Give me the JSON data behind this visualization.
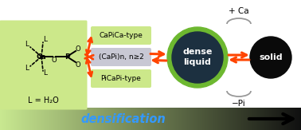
{
  "bg_color": "#ffffff",
  "light_green": "#cce88a",
  "medium_green": "#6db830",
  "dark_circle_color": "#1c3040",
  "black_circle": "#0a0a0a",
  "orange_arrow": "#ff4400",
  "gray_box_color": "#c8c8d4",
  "box1_label": "CaPiCa-type",
  "box2_label": "(CaPi)n, n≥2",
  "box3_label": "PiCaPi-type",
  "dense_line1": "dense",
  "dense_line2": "liquid",
  "solid_label": "solid",
  "caption_l": "L = H₂O",
  "plus_ca": "+ Ca",
  "minus_pi": "−Pi",
  "densification": "densification"
}
